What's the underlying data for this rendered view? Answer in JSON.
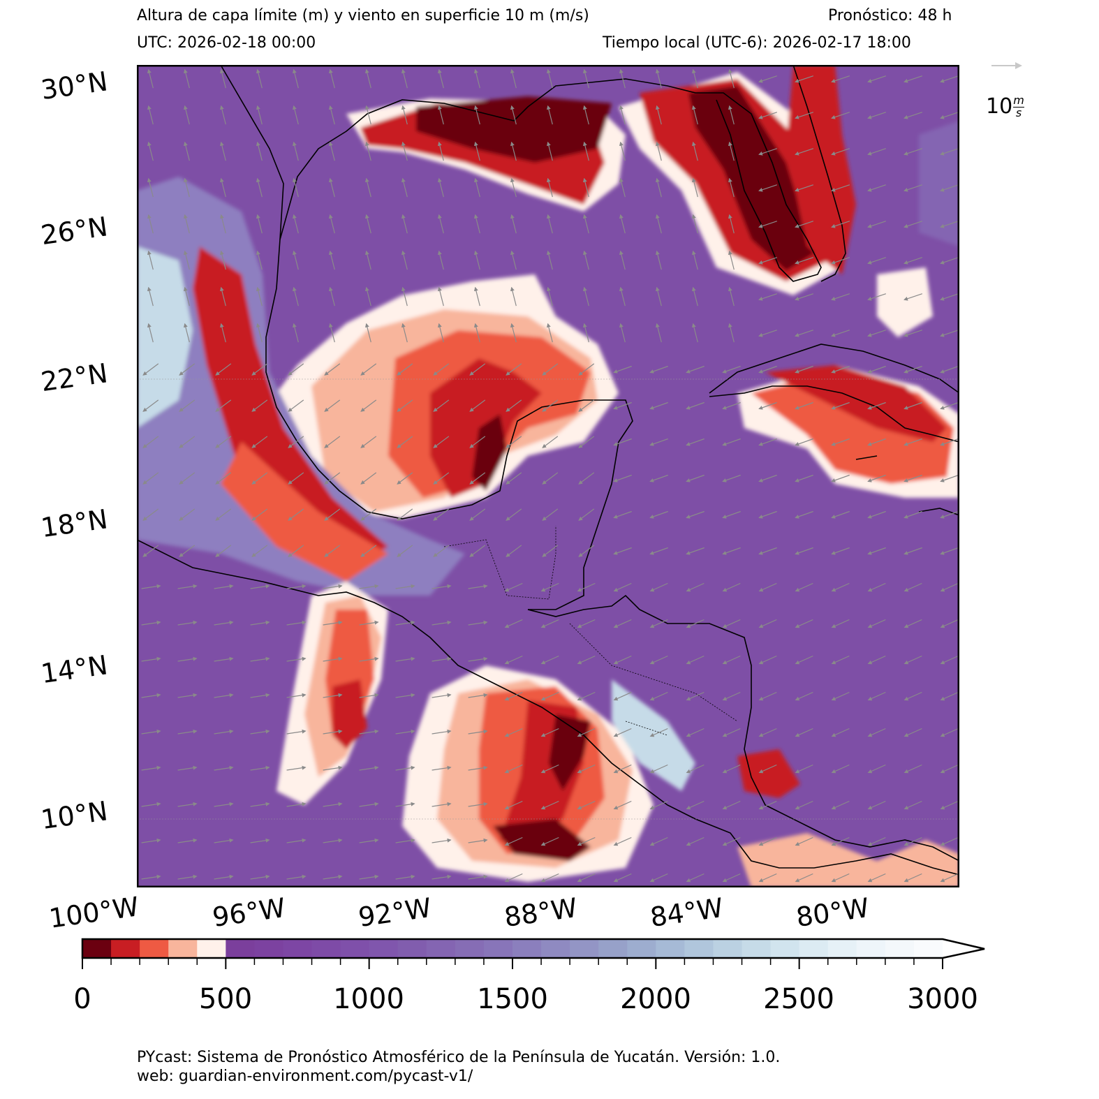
{
  "header": {
    "title": "Altura de capa límite (m) y viento en superficie 10 m (m/s)",
    "forecast": "Pronóstico: 48 h",
    "utc": "UTC:  2026-02-18 00:00",
    "local_time": "Tiempo local (UTC-6): 2026-02-17 18:00"
  },
  "map": {
    "lat_labels": [
      "30°N",
      "26°N",
      "22°N",
      "18°N",
      "14°N",
      "10°N"
    ],
    "lon_labels": [
      "100°W",
      "96°W",
      "92°W",
      "88°W",
      "84°W",
      "80°W"
    ],
    "lon_range": [
      -100,
      -77.5
    ],
    "lat_range": [
      7.5,
      30
    ],
    "field": "planetary boundary layer height (m) with 10 m wind vectors (m/s)",
    "colors": {
      "land_outline": "#000000",
      "ocean_base": "#7e4fa6",
      "high_pbl_red": "#c81e23",
      "low_pbl_darkred": "#6b0010",
      "wind_arrow": "#8a8a8a"
    }
  },
  "wind_reference": {
    "value": "10",
    "unit_num": "m",
    "unit_den": "s"
  },
  "colorbar": {
    "tick_labels": [
      "0",
      "500",
      "1000",
      "1500",
      "2000",
      "2500",
      "3000"
    ],
    "min": 0,
    "max": 3000,
    "step": 100,
    "extend": "max",
    "colors": [
      "#6b0010",
      "#c81e23",
      "#ee5a43",
      "#f8b59c",
      "#fff1ea",
      "#7b3f9c",
      "#7c42a0",
      "#7d46a4",
      "#7e4ba7",
      "#7f50aa",
      "#8056ad",
      "#815dae",
      "#8465b2",
      "#866db5",
      "#8875b9",
      "#8b7fbd",
      "#8f8ac1",
      "#9395c5",
      "#97a1c9",
      "#9dadcf",
      "#a6bad6",
      "#b0c6dc",
      "#bbd1e2",
      "#c6dbe8",
      "#d1e4ee",
      "#dcebf3",
      "#e6f1f7",
      "#eef5fa",
      "#f4f8fb",
      "#f9fbfd"
    ]
  },
  "footer": {
    "line1": "PYcast: Sistema de Pronóstico Atmosférico de la Península de Yucatán. Versión: 1.0.",
    "line2": "web: guardian-environment.com/pycast-v1/"
  }
}
